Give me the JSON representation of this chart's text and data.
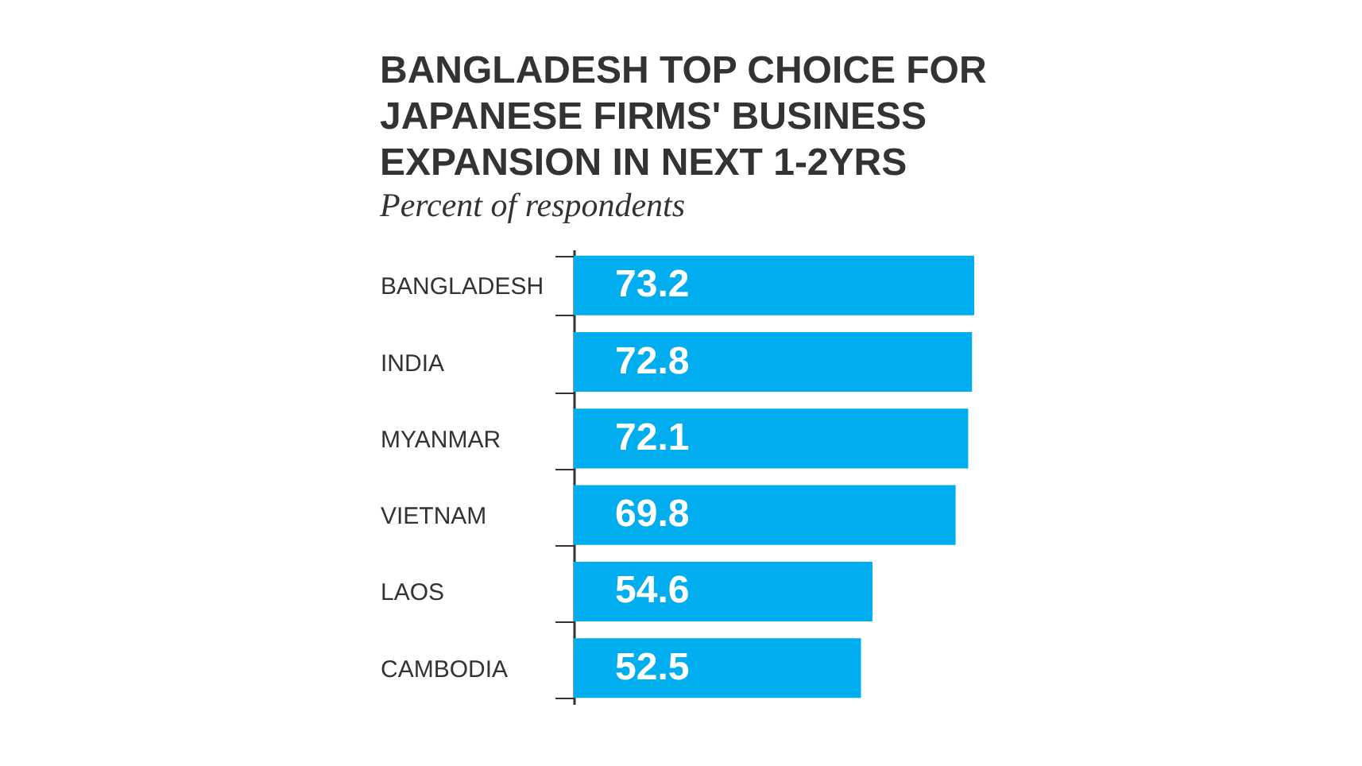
{
  "chart_data": {
    "type": "bar",
    "orientation": "horizontal",
    "data_labels": true,
    "title": "BANGLADESH TOP CHOICE FOR JAPANESE FIRMS' BUSINESS EXPANSION IN NEXT 1-2YRS",
    "subtitle": "Percent of respondents",
    "categories": [
      "BANGLADESH",
      "INDIA",
      "MYANMAR",
      "VIETNAM",
      "LAOS",
      "CAMBODIA"
    ],
    "values": [
      73.2,
      72.8,
      72.1,
      69.8,
      54.6,
      52.5
    ],
    "color": "#00aeef"
  }
}
